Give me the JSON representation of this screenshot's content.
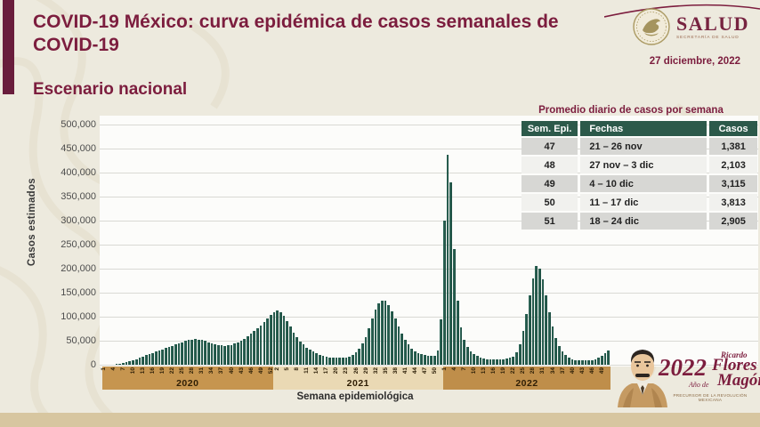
{
  "header": {
    "title": "COVID-19 México: curva epidémica de casos semanales de COVID-19",
    "section_title": "Escenario nacional",
    "date": "27 diciembre, 2022",
    "logo_name": "SALUD",
    "logo_subtitle": "SECRETARÍA DE SALUD"
  },
  "colors": {
    "maroon": "#7c1d3e",
    "bar_green": "#1f5548",
    "table_header_green": "#2c594a",
    "band_2020": "#c6954f",
    "band_2021": "#ead9b4",
    "band_2022": "#bf8e4a",
    "bottom_band": "#d7c6a0",
    "background": "#edeade"
  },
  "table": {
    "title": "Promedio diario de casos por semana",
    "columns": [
      "Sem. Epi.",
      "Fechas",
      "Casos"
    ],
    "rows": [
      [
        "47",
        "21 – 26 nov",
        "1,381"
      ],
      [
        "48",
        "27 nov – 3 dic",
        "2,103"
      ],
      [
        "49",
        "4 – 10 dic",
        "3,115"
      ],
      [
        "50",
        "11 – 17 dic",
        "3,813"
      ],
      [
        "51",
        "18 – 24 dic",
        "2,905"
      ]
    ]
  },
  "chart_data": {
    "type": "bar",
    "title": "",
    "xlabel": "Semana epidemiológica",
    "ylabel": "Casos estimados",
    "ylim": [
      0,
      500000
    ],
    "ytick_step": 50000,
    "yticks": [
      "0",
      "50,000",
      "100,000",
      "150,000",
      "200,000",
      "250,000",
      "300,000",
      "350,000",
      "400,000",
      "450,000",
      "500,000"
    ],
    "grid": true,
    "years": [
      {
        "label": "2020",
        "weeks": 52,
        "band_color": "#c6954f",
        "tick_weeks": [
          1,
          4,
          7,
          10,
          13,
          16,
          19,
          22,
          25,
          28,
          31,
          34,
          37,
          40,
          43,
          46,
          49,
          52
        ]
      },
      {
        "label": "2021",
        "weeks": 52,
        "band_color": "#ead9b4",
        "tick_weeks": [
          2,
          5,
          8,
          11,
          14,
          17,
          20,
          23,
          26,
          29,
          32,
          35,
          38,
          41,
          44,
          47,
          50
        ]
      },
      {
        "label": "2022",
        "weeks": 51,
        "band_color": "#bf8e4a",
        "tick_weeks": [
          1,
          4,
          7,
          10,
          13,
          16,
          19,
          22,
          25,
          28,
          31,
          34,
          37,
          40,
          43,
          46,
          49
        ]
      }
    ],
    "values": [
      200,
      300,
      450,
      700,
      1100,
      1800,
      3000,
      4800,
      7000,
      9500,
      12000,
      14500,
      17000,
      19500,
      22000,
      24500,
      27000,
      29500,
      32000,
      34500,
      37000,
      39500,
      42000,
      44500,
      47000,
      49500,
      51500,
      52500,
      53000,
      52500,
      51500,
      49500,
      47000,
      44500,
      42500,
      41000,
      40000,
      39500,
      40000,
      41500,
      44000,
      47000,
      50500,
      54500,
      59000,
      64000,
      69500,
      75500,
      82000,
      89000,
      96500,
      104000,
      110000,
      113000,
      110000,
      102000,
      91000,
      79000,
      67500,
      57500,
      49000,
      42000,
      36000,
      31000,
      27000,
      23500,
      21000,
      19000,
      17000,
      15500,
      14500,
      14000,
      14000,
      14500,
      15500,
      17500,
      21000,
      26000,
      33500,
      44000,
      58000,
      76000,
      96000,
      114000,
      127000,
      134000,
      133000,
      125000,
      112000,
      96000,
      80000,
      65000,
      52000,
      42000,
      34000,
      28500,
      24500,
      21500,
      19500,
      18500,
      18000,
      19000,
      30000,
      95000,
      300000,
      437000,
      380000,
      240000,
      133000,
      78000,
      51000,
      37000,
      28000,
      22000,
      18000,
      15000,
      13000,
      12000,
      11500,
      11000,
      11000,
      11500,
      12000,
      13000,
      14500,
      17000,
      26000,
      42000,
      70000,
      105000,
      145000,
      180000,
      205000,
      200000,
      178000,
      145000,
      110000,
      80000,
      56000,
      39000,
      27500,
      20000,
      15000,
      12000,
      10000,
      9000,
      8500,
      8500,
      9000,
      10000,
      11500,
      14000,
      18000,
      23500,
      29000
    ]
  },
  "footer_logo": {
    "year": "2022",
    "tagline": "Año de",
    "line1": "Ricardo",
    "line2": "Flores",
    "line3": "Magón",
    "subtitle": "PRECURSOR DE LA REVOLUCIÓN MEXICANA"
  }
}
